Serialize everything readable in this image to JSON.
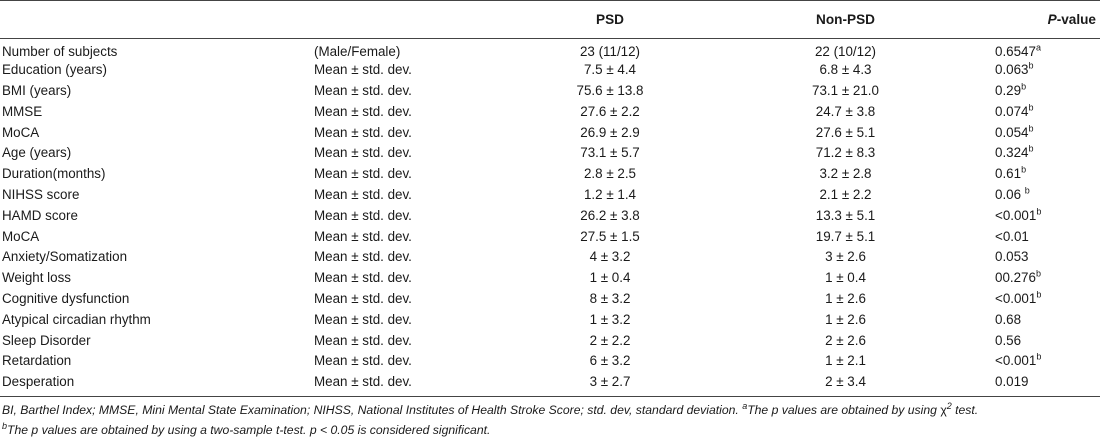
{
  "table": {
    "headers": {
      "variable": "",
      "statistic": "",
      "psd": "PSD",
      "non_psd": "Non-PSD",
      "p_value_italic": "P",
      "p_value_rest": "-value"
    },
    "rows": [
      {
        "variable": "Number of subjects",
        "statistic": "(Male/Female)",
        "psd": "23 (11/12)",
        "non_psd": "22 (10/12)",
        "p": "0.6547",
        "sup": "a"
      },
      {
        "variable": "Education (years)",
        "statistic": "Mean ± std. dev.",
        "psd": "7.5 ± 4.4",
        "non_psd": "6.8 ± 4.3",
        "p": "0.063",
        "sup": "b"
      },
      {
        "variable": "BMI (years)",
        "statistic": "Mean ± std. dev.",
        "psd": "75.6 ± 13.8",
        "non_psd": "73.1 ± 21.0",
        "p": "0.29",
        "sup": "b"
      },
      {
        "variable": "MMSE",
        "statistic": "Mean ± std. dev.",
        "psd": "27.6 ± 2.2",
        "non_psd": "24.7 ± 3.8",
        "p": "0.074",
        "sup": "b"
      },
      {
        "variable": "MoCA",
        "statistic": "Mean ± std. dev.",
        "psd": "26.9 ± 2.9",
        "non_psd": "27.6 ± 5.1",
        "p": "0.054",
        "sup": "b"
      },
      {
        "variable": "Age (years)",
        "statistic": "Mean ± std. dev.",
        "psd": "73.1 ± 5.7",
        "non_psd": "71.2 ± 8.3",
        "p": "0.324",
        "sup": "b"
      },
      {
        "variable": "Duration(months)",
        "statistic": "Mean ± std. dev.",
        "psd": "2.8 ± 2.5",
        "non_psd": "3.2 ± 2.8",
        "p": "0.61",
        "sup": "b"
      },
      {
        "variable": "NIHSS score",
        "statistic": "Mean ± std. dev.",
        "psd": "1.2 ± 1.4",
        "non_psd": "2.1 ± 2.2",
        "p": "0.06 ",
        "sup": "b"
      },
      {
        "variable": "HAMD score",
        "statistic": "Mean ± std. dev.",
        "psd": "26.2 ± 3.8",
        "non_psd": "13.3 ± 5.1",
        "p": "<0.001",
        "sup": "b"
      },
      {
        "variable": "MoCA",
        "statistic": "Mean ± std. dev.",
        "psd": "27.5 ± 1.5",
        "non_psd": "19.7 ± 5.1",
        "p": "<0.01",
        "sup": ""
      },
      {
        "variable": "Anxiety/Somatization",
        "statistic": "Mean ± std. dev.",
        "psd": "4 ± 3.2",
        "non_psd": "3 ± 2.6",
        "p": "0.053",
        "sup": ""
      },
      {
        "variable": "Weight loss",
        "statistic": "Mean ± std. dev.",
        "psd": "1 ± 0.4",
        "non_psd": "1 ± 0.4",
        "p": "00.276",
        "sup": "b"
      },
      {
        "variable": "Cognitive dysfunction",
        "statistic": "Mean ± std. dev.",
        "psd": "8 ± 3.2",
        "non_psd": "1 ± 2.6",
        "p": "<0.001",
        "sup": "b"
      },
      {
        "variable": "Atypical circadian rhythm",
        "statistic": "Mean ± std. dev.",
        "psd": "1 ± 3.2",
        "non_psd": "1 ± 2.6",
        "p": "0.68",
        "sup": ""
      },
      {
        "variable": "Sleep Disorder",
        "statistic": "Mean ± std. dev.",
        "psd": "2 ± 2.2",
        "non_psd": "2 ± 2.6",
        "p": "0.56",
        "sup": ""
      },
      {
        "variable": "Retardation",
        "statistic": "Mean ± std. dev.",
        "psd": "6 ± 3.2",
        "non_psd": "1 ± 2.1",
        "p": "<0.001",
        "sup": "b"
      },
      {
        "variable": "Desperation",
        "statistic": "Mean ± std. dev.",
        "psd": "3 ± 2.7",
        "non_psd": "2 ± 3.4",
        "p": "0.019",
        "sup": ""
      }
    ]
  },
  "footnote": {
    "line1_prefix": "BI, Barthel Index; MMSE, Mini Mental State Examination; NIHSS, National Institutes of Health Stroke Score; std. dev, standard deviation. ",
    "line1_sup_a": "a",
    "line1_mid": "The p values are obtained by using ",
    "line1_chi": "χ",
    "line1_chi_sup": "2",
    "line1_end": " test.",
    "line2_sup_b": "b",
    "line2_text": "The p values are obtained by using a two-sample t-test. p < 0.05 is considered significant."
  }
}
